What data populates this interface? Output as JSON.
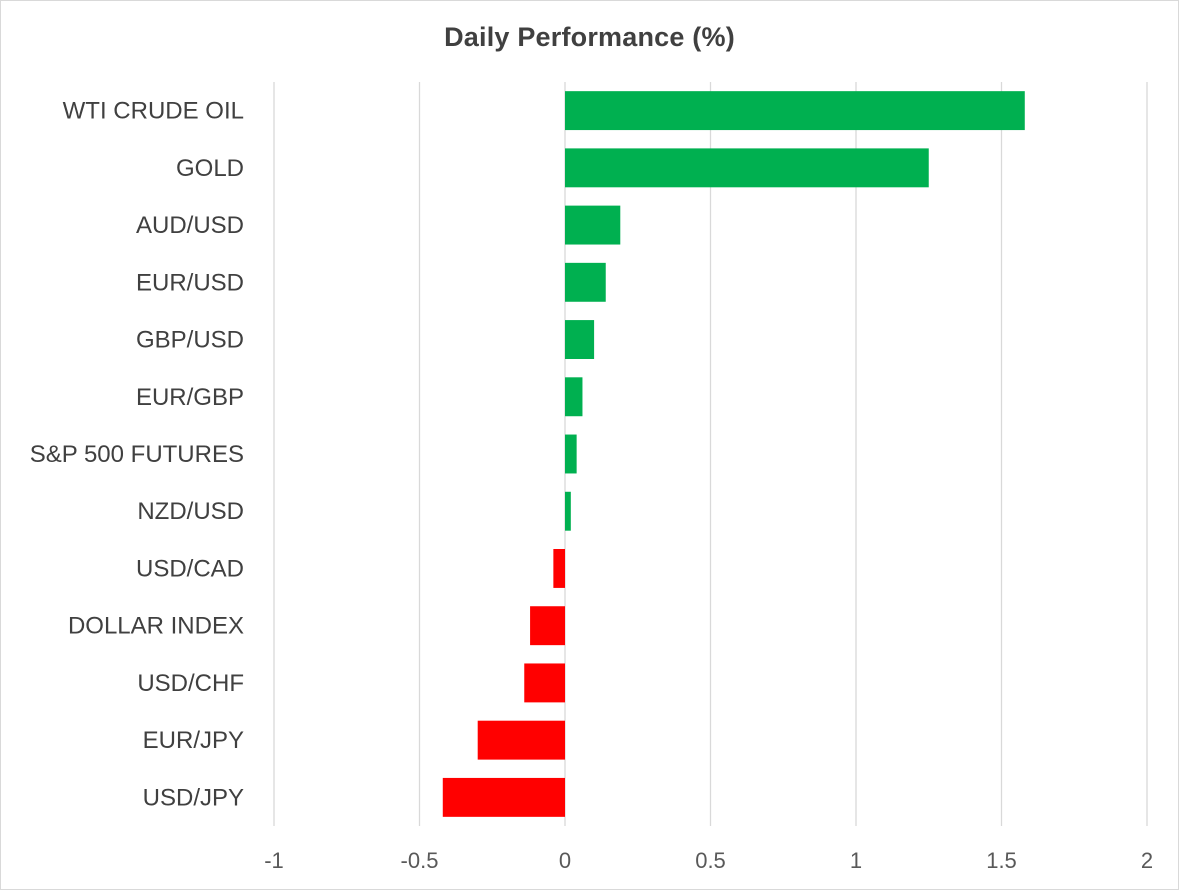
{
  "chart_data": {
    "type": "bar",
    "orientation": "horizontal",
    "title": "Daily Performance (%)",
    "xlabel": "",
    "ylabel": "",
    "categories": [
      "WTI CRUDE OIL",
      "GOLD",
      "AUD/USD",
      "EUR/USD",
      "GBP/USD",
      "EUR/GBP",
      "S&P 500 FUTURES",
      "NZD/USD",
      "USD/CAD",
      "DOLLAR INDEX",
      "USD/CHF",
      "EUR/JPY",
      "USD/JPY"
    ],
    "values": [
      1.58,
      1.25,
      0.19,
      0.14,
      0.1,
      0.06,
      0.04,
      0.02,
      -0.04,
      -0.12,
      -0.14,
      -0.3,
      -0.42
    ],
    "xlim": [
      -1,
      2
    ],
    "xticks": [
      -1,
      -0.5,
      0,
      0.5,
      1,
      1.5,
      2
    ],
    "xtick_labels": [
      "-1",
      "-0.5",
      "0",
      "0.5",
      "1",
      "1.5",
      "2"
    ],
    "grid": true,
    "legend": "none",
    "colors": {
      "positive": "#00b050",
      "negative": "#ff0000",
      "grid": "#d9d9d9"
    }
  }
}
